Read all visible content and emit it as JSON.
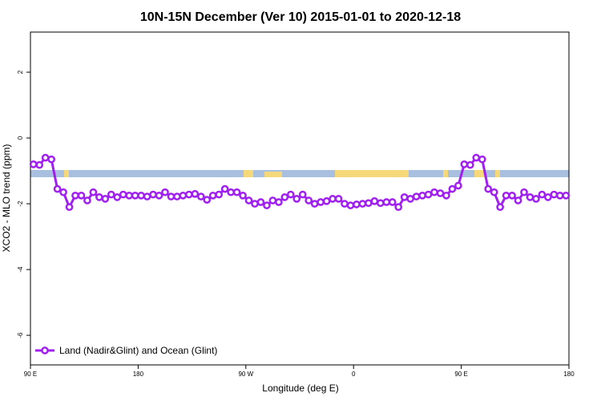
{
  "chart_data": {
    "type": "line",
    "title": "10N-15N December (Ver 10)   2015-01-01 to 2020-12-18",
    "x_label": "Longitude (deg E)",
    "y_label": "XCO2 - MLO trend (ppm)",
    "x": [
      92.5,
      97.5,
      102.5,
      107.5,
      112.5,
      117.5,
      122.5,
      127.5,
      132.5,
      137.5,
      142.5,
      147.5,
      152.5,
      157.5,
      162.5,
      167.5,
      172.5,
      177.5,
      182.5,
      187.5,
      192.5,
      197.5,
      202.5,
      207.5,
      212.5,
      217.5,
      222.5,
      227.5,
      232.5,
      237.5,
      242.5,
      247.5,
      252.5,
      257.5,
      262.5,
      267.5,
      272.5,
      277.5,
      282.5,
      287.5,
      292.5,
      297.5,
      302.5,
      307.5,
      312.5,
      317.5,
      322.5,
      327.5,
      332.5,
      337.5,
      342.5,
      347.5,
      352.5,
      357.5,
      362.5,
      367.5,
      372.5,
      377.5,
      382.5,
      387.5,
      392.5,
      397.5,
      402.5,
      407.5,
      412.5,
      417.5,
      422.5,
      427.5,
      432.5,
      437.5,
      442.5,
      447.5,
      452.5,
      457.5,
      462.5,
      467.5,
      472.5,
      477.5,
      482.5,
      487.5,
      492.5,
      497.5,
      502.5,
      507.5,
      512.5,
      517.5,
      522.5,
      527.5,
      532.5,
      537.5
    ],
    "series": [
      {
        "name": "Land (Nadir&Glint) and Ocean (Glint)",
        "color": "#a020f0",
        "values": [
          -0.8,
          -0.82,
          -0.6,
          -0.65,
          -1.55,
          -1.65,
          -2.1,
          -1.75,
          -1.75,
          -1.9,
          -1.65,
          -1.8,
          -1.85,
          -1.72,
          -1.8,
          -1.72,
          -1.75,
          -1.75,
          -1.75,
          -1.78,
          -1.72,
          -1.75,
          -1.65,
          -1.78,
          -1.78,
          -1.75,
          -1.72,
          -1.7,
          -1.78,
          -1.88,
          -1.75,
          -1.72,
          -1.55,
          -1.65,
          -1.65,
          -1.75,
          -1.9,
          -2.0,
          -1.95,
          -2.05,
          -1.9,
          -1.95,
          -1.8,
          -1.72,
          -1.85,
          -1.72,
          -1.9,
          -2.0,
          -1.95,
          -1.92,
          -1.85,
          -1.85,
          -2.0,
          -2.05,
          -2.02,
          -2.0,
          -1.98,
          -1.92,
          -1.98,
          -1.95,
          -1.95,
          -2.1,
          -1.8,
          -1.85,
          -1.78,
          -1.75,
          -1.72,
          -1.65,
          -1.68,
          -1.75,
          -1.55,
          -1.45,
          -0.8,
          -0.82,
          -0.6,
          -0.65,
          -1.55,
          -1.65,
          -2.1,
          -1.75,
          -1.75,
          -1.9,
          -1.65,
          -1.8,
          -1.85,
          -1.72,
          -1.8,
          -1.72,
          -1.75,
          -1.75
        ]
      }
    ],
    "xlim": [
      90,
      540
    ],
    "xticks": [
      {
        "value": 90,
        "label": "90 E"
      },
      180,
      {
        "value": 270,
        "label": "90 W"
      },
      {
        "value": 360,
        "label": "0"
      },
      {
        "value": 450,
        "label": "90 E"
      },
      {
        "value": 540,
        "label": "180"
      }
    ],
    "ylim": [
      -6.9,
      3.22
    ],
    "yticks": [
      2,
      0,
      -2,
      -4,
      -6
    ],
    "legend": "bottomleft"
  }
}
